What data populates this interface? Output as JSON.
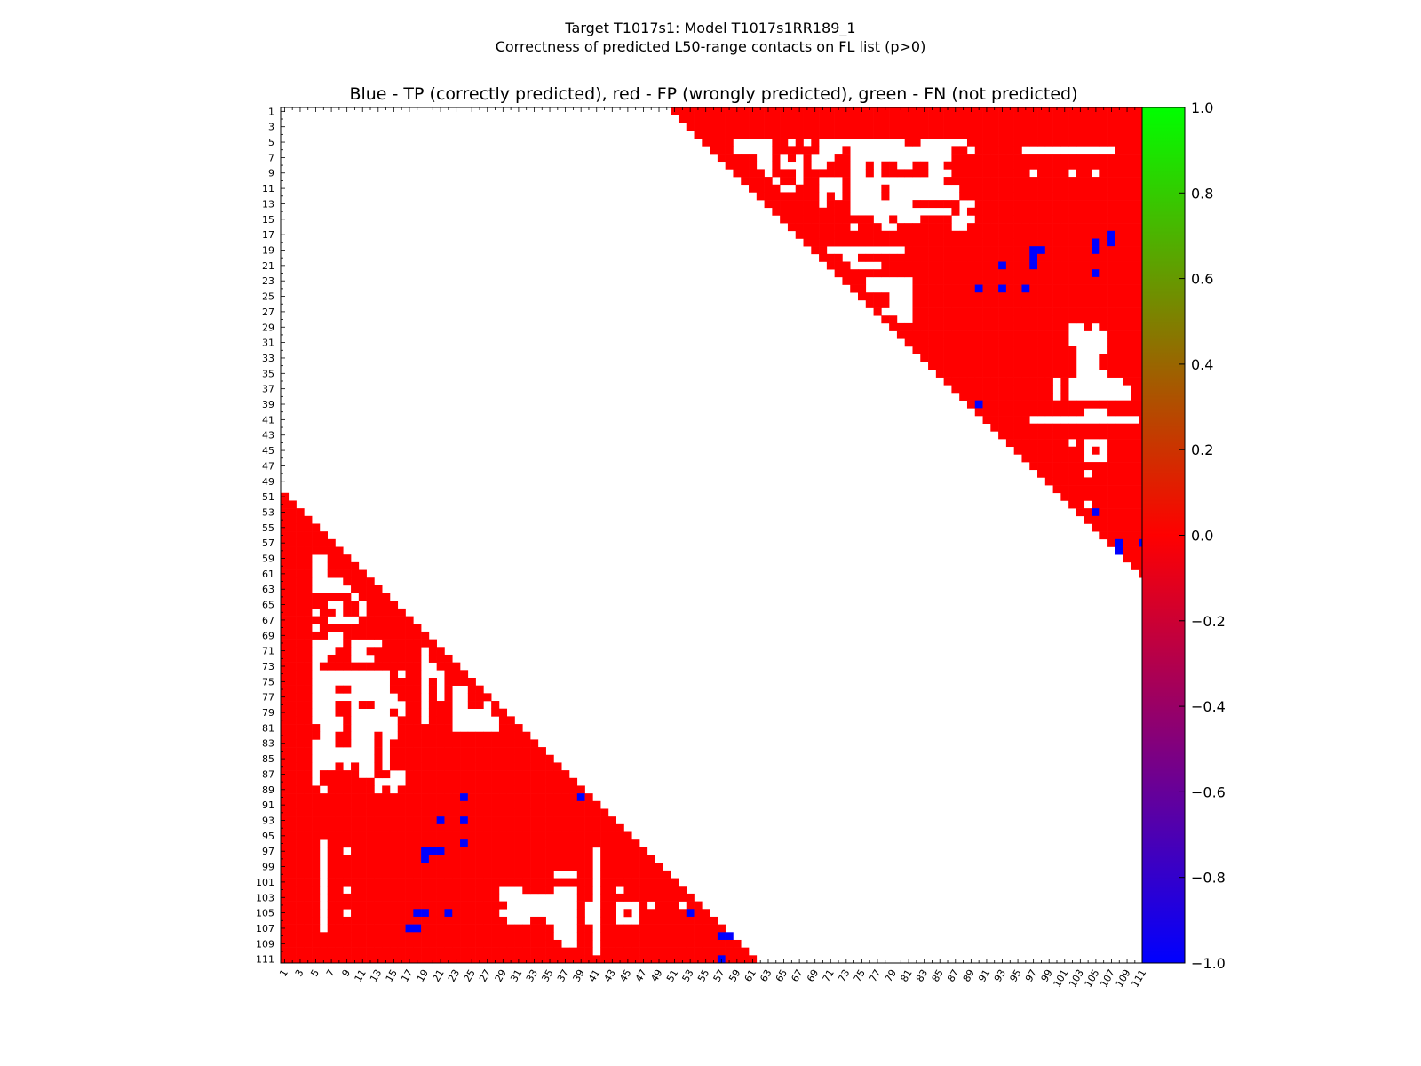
{
  "header": {
    "title_line1": "Target T1017s1: Model T1017s1RR189_1",
    "title_line2": "Correctness of predicted L50-range contacts on FL list (p>0)"
  },
  "chart_data": {
    "type": "heatmap",
    "title": "Blue - TP (correctly predicted), red - FP (wrongly predicted), green - FN (not predicted)",
    "n": 111,
    "x_ticks": [
      1,
      3,
      5,
      7,
      9,
      11,
      13,
      15,
      17,
      19,
      21,
      23,
      25,
      27,
      29,
      31,
      33,
      35,
      37,
      39,
      41,
      43,
      45,
      47,
      49,
      51,
      53,
      55,
      57,
      59,
      61,
      63,
      65,
      67,
      69,
      71,
      73,
      75,
      77,
      79,
      81,
      83,
      85,
      87,
      89,
      91,
      93,
      95,
      97,
      99,
      101,
      103,
      105,
      107,
      109,
      111
    ],
    "y_ticks": [
      1,
      3,
      5,
      7,
      9,
      11,
      13,
      15,
      17,
      19,
      21,
      23,
      25,
      27,
      29,
      31,
      33,
      35,
      37,
      39,
      41,
      43,
      45,
      47,
      49,
      51,
      53,
      55,
      57,
      59,
      61,
      63,
      65,
      67,
      69,
      71,
      73,
      75,
      77,
      79,
      81,
      83,
      85,
      87,
      89,
      91,
      93,
      95,
      97,
      99,
      101,
      103,
      105,
      107,
      109,
      111
    ],
    "colorbar": {
      "range": [
        -1.0,
        1.0
      ],
      "ticks": [
        "1.0",
        "0.8",
        "0.6",
        "0.4",
        "0.2",
        "0.0",
        "−0.2",
        "−0.4",
        "−0.6",
        "−0.8",
        "−1.0"
      ],
      "colors": [
        "#00ff00",
        "#ff0000",
        "#0000ff"
      ]
    },
    "min_separation": 50,
    "fp_default": "red",
    "true_positives": [
      [
        17,
        107
      ],
      [
        18,
        105
      ],
      [
        18,
        107
      ],
      [
        19,
        97
      ],
      [
        19,
        98
      ],
      [
        19,
        105
      ],
      [
        20,
        97
      ],
      [
        21,
        93
      ],
      [
        21,
        97
      ],
      [
        22,
        105
      ],
      [
        24,
        90
      ],
      [
        24,
        93
      ],
      [
        24,
        96
      ],
      [
        39,
        90
      ],
      [
        53,
        105
      ],
      [
        57,
        108
      ],
      [
        57,
        111
      ],
      [
        58,
        108
      ]
    ],
    "predicted_map_note": "upper triangle = predicted contacts (i<j), lower triangle mirrored",
    "unpredicted_cells": [
      [
        5,
        59
      ],
      [
        5,
        60
      ],
      [
        5,
        61
      ],
      [
        5,
        62
      ],
      [
        5,
        63
      ],
      [
        5,
        66
      ],
      [
        5,
        68
      ],
      [
        5,
        70
      ],
      [
        5,
        71
      ],
      [
        5,
        72
      ],
      [
        5,
        73
      ],
      [
        5,
        74
      ],
      [
        5,
        75
      ],
      [
        5,
        76
      ],
      [
        5,
        77
      ],
      [
        5,
        78
      ],
      [
        5,
        79
      ],
      [
        5,
        80
      ],
      [
        5,
        83
      ],
      [
        5,
        84
      ],
      [
        5,
        85
      ],
      [
        5,
        86
      ],
      [
        5,
        87
      ],
      [
        5,
        88
      ],
      [
        6,
        59
      ],
      [
        6,
        60
      ],
      [
        6,
        61
      ],
      [
        6,
        62
      ],
      [
        6,
        63
      ],
      [
        6,
        70
      ],
      [
        6,
        71
      ],
      [
        6,
        72
      ],
      [
        6,
        74
      ],
      [
        6,
        75
      ],
      [
        6,
        76
      ],
      [
        6,
        77
      ],
      [
        6,
        78
      ],
      [
        6,
        79
      ],
      [
        6,
        80
      ],
      [
        6,
        81
      ],
      [
        6,
        82
      ],
      [
        6,
        83
      ],
      [
        6,
        84
      ],
      [
        6,
        85
      ],
      [
        6,
        86
      ],
      [
        6,
        89
      ],
      [
        6,
        96
      ],
      [
        6,
        97
      ],
      [
        6,
        98
      ],
      [
        6,
        99
      ],
      [
        6,
        100
      ],
      [
        6,
        101
      ],
      [
        6,
        102
      ],
      [
        6,
        103
      ],
      [
        6,
        104
      ],
      [
        6,
        105
      ],
      [
        6,
        106
      ],
      [
        6,
        107
      ],
      [
        7,
        62
      ],
      [
        7,
        63
      ],
      [
        7,
        65
      ],
      [
        7,
        67
      ],
      [
        7,
        69
      ],
      [
        7,
        70
      ],
      [
        7,
        71
      ],
      [
        7,
        74
      ],
      [
        7,
        75
      ],
      [
        7,
        76
      ],
      [
        7,
        77
      ],
      [
        7,
        78
      ],
      [
        7,
        79
      ],
      [
        7,
        80
      ],
      [
        7,
        81
      ],
      [
        7,
        82
      ],
      [
        7,
        83
      ],
      [
        7,
        84
      ],
      [
        7,
        85
      ],
      [
        7,
        86
      ],
      [
        8,
        62
      ],
      [
        8,
        63
      ],
      [
        8,
        65
      ],
      [
        8,
        66
      ],
      [
        8,
        67
      ],
      [
        8,
        69
      ],
      [
        8,
        70
      ],
      [
        8,
        74
      ],
      [
        8,
        75
      ],
      [
        8,
        77
      ],
      [
        8,
        80
      ],
      [
        8,
        81
      ],
      [
        8,
        84
      ],
      [
        8,
        85
      ],
      [
        9,
        63
      ],
      [
        9,
        67
      ],
      [
        9,
        74
      ],
      [
        9,
        75
      ],
      [
        9,
        77
      ],
      [
        9,
        84
      ],
      [
        9,
        85
      ],
      [
        9,
        86
      ],
      [
        9,
        97
      ],
      [
        9,
        102
      ],
      [
        9,
        105
      ],
      [
        10,
        64
      ],
      [
        10,
        67
      ],
      [
        10,
        70
      ],
      [
        10,
        71
      ],
      [
        10,
        72
      ],
      [
        10,
        74
      ],
      [
        10,
        75
      ],
      [
        10,
        76
      ],
      [
        10,
        77
      ],
      [
        10,
        78
      ],
      [
        10,
        79
      ],
      [
        10,
        80
      ],
      [
        10,
        81
      ],
      [
        10,
        82
      ],
      [
        10,
        83
      ],
      [
        10,
        84
      ],
      [
        10,
        85
      ],
      [
        11,
        65
      ],
      [
        11,
        66
      ],
      [
        11,
        70
      ],
      [
        11,
        71
      ],
      [
        11,
        72
      ],
      [
        11,
        74
      ],
      [
        11,
        75
      ],
      [
        11,
        76
      ],
      [
        11,
        77
      ],
      [
        11,
        79
      ],
      [
        11,
        80
      ],
      [
        11,
        81
      ],
      [
        11,
        82
      ],
      [
        11,
        83
      ],
      [
        11,
        84
      ],
      [
        11,
        85
      ],
      [
        11,
        86
      ],
      [
        11,
        87
      ],
      [
        12,
        70
      ],
      [
        12,
        72
      ],
      [
        12,
        74
      ],
      [
        12,
        75
      ],
      [
        12,
        76
      ],
      [
        12,
        77
      ],
      [
        12,
        79
      ],
      [
        12,
        80
      ],
      [
        12,
        81
      ],
      [
        12,
        82
      ],
      [
        12,
        83
      ],
      [
        12,
        84
      ],
      [
        12,
        85
      ],
      [
        12,
        86
      ],
      [
        12,
        87
      ],
      [
        13,
        70
      ],
      [
        13,
        74
      ],
      [
        13,
        75
      ],
      [
        13,
        76
      ],
      [
        13,
        77
      ],
      [
        13,
        78
      ],
      [
        13,
        79
      ],
      [
        13,
        80
      ],
      [
        13,
        81
      ],
      [
        13,
        88
      ],
      [
        13,
        89
      ],
      [
        14,
        74
      ],
      [
        14,
        75
      ],
      [
        14,
        76
      ],
      [
        14,
        77
      ],
      [
        14,
        78
      ],
      [
        14,
        79
      ],
      [
        14,
        80
      ],
      [
        14,
        81
      ],
      [
        14,
        82
      ],
      [
        14,
        83
      ],
      [
        14,
        84
      ],
      [
        14,
        85
      ],
      [
        14,
        86
      ],
      [
        14,
        88
      ],
      [
        15,
        77
      ],
      [
        15,
        78
      ],
      [
        15,
        80
      ],
      [
        15,
        81
      ],
      [
        15,
        82
      ],
      [
        15,
        87
      ],
      [
        15,
        88
      ],
      [
        15,
        89
      ],
      [
        16,
        74
      ],
      [
        16,
        78
      ],
      [
        16,
        79
      ],
      [
        16,
        87
      ],
      [
        16,
        88
      ],
      [
        19,
        71
      ],
      [
        19,
        72
      ],
      [
        19,
        73
      ],
      [
        19,
        74
      ],
      [
        19,
        75
      ],
      [
        19,
        76
      ],
      [
        19,
        77
      ],
      [
        19,
        78
      ],
      [
        19,
        79
      ],
      [
        19,
        80
      ],
      [
        20,
        73
      ],
      [
        20,
        74
      ],
      [
        21,
        74
      ],
      [
        21,
        75
      ],
      [
        21,
        76
      ],
      [
        21,
        77
      ],
      [
        23,
        76
      ],
      [
        23,
        77
      ],
      [
        23,
        78
      ],
      [
        23,
        79
      ],
      [
        23,
        80
      ],
      [
        23,
        81
      ],
      [
        24,
        76
      ],
      [
        24,
        77
      ],
      [
        24,
        78
      ],
      [
        24,
        79
      ],
      [
        24,
        80
      ],
      [
        24,
        81
      ],
      [
        25,
        79
      ],
      [
        25,
        80
      ],
      [
        25,
        81
      ],
      [
        26,
        79
      ],
      [
        26,
        80
      ],
      [
        26,
        81
      ],
      [
        27,
        78
      ],
      [
        27,
        79
      ],
      [
        27,
        80
      ],
      [
        27,
        81
      ],
      [
        28,
        80
      ],
      [
        28,
        81
      ],
      [
        29,
        102
      ],
      [
        29,
        103
      ],
      [
        29,
        105
      ],
      [
        30,
        102
      ],
      [
        30,
        103
      ],
      [
        30,
        104
      ],
      [
        30,
        105
      ],
      [
        30,
        106
      ],
      [
        31,
        102
      ],
      [
        31,
        103
      ],
      [
        31,
        104
      ],
      [
        31,
        105
      ],
      [
        31,
        106
      ],
      [
        32,
        103
      ],
      [
        32,
        104
      ],
      [
        32,
        105
      ],
      [
        32,
        106
      ],
      [
        33,
        103
      ],
      [
        33,
        104
      ],
      [
        33,
        105
      ],
      [
        34,
        103
      ],
      [
        34,
        104
      ],
      [
        34,
        105
      ],
      [
        35,
        103
      ],
      [
        35,
        104
      ],
      [
        35,
        105
      ],
      [
        35,
        106
      ],
      [
        36,
        100
      ],
      [
        36,
        102
      ],
      [
        36,
        103
      ],
      [
        36,
        104
      ],
      [
        36,
        105
      ],
      [
        36,
        106
      ],
      [
        36,
        107
      ],
      [
        36,
        108
      ],
      [
        37,
        100
      ],
      [
        37,
        102
      ],
      [
        37,
        103
      ],
      [
        37,
        104
      ],
      [
        37,
        105
      ],
      [
        37,
        106
      ],
      [
        37,
        107
      ],
      [
        37,
        108
      ],
      [
        37,
        109
      ],
      [
        38,
        100
      ],
      [
        38,
        102
      ],
      [
        38,
        103
      ],
      [
        38,
        104
      ],
      [
        38,
        105
      ],
      [
        38,
        106
      ],
      [
        38,
        107
      ],
      [
        38,
        108
      ],
      [
        38,
        109
      ],
      [
        40,
        104
      ],
      [
        40,
        105
      ],
      [
        40,
        106
      ],
      [
        41,
        97
      ],
      [
        41,
        98
      ],
      [
        41,
        99
      ],
      [
        41,
        100
      ],
      [
        41,
        101
      ],
      [
        41,
        102
      ],
      [
        41,
        103
      ],
      [
        41,
        104
      ],
      [
        41,
        105
      ],
      [
        41,
        106
      ],
      [
        41,
        107
      ],
      [
        41,
        108
      ],
      [
        41,
        109
      ],
      [
        41,
        110
      ],
      [
        44,
        102
      ],
      [
        44,
        104
      ],
      [
        44,
        105
      ],
      [
        44,
        106
      ],
      [
        45,
        104
      ],
      [
        45,
        106
      ],
      [
        46,
        104
      ],
      [
        46,
        105
      ],
      [
        46,
        106
      ],
      [
        48,
        104
      ],
      [
        52,
        104
      ]
    ]
  }
}
